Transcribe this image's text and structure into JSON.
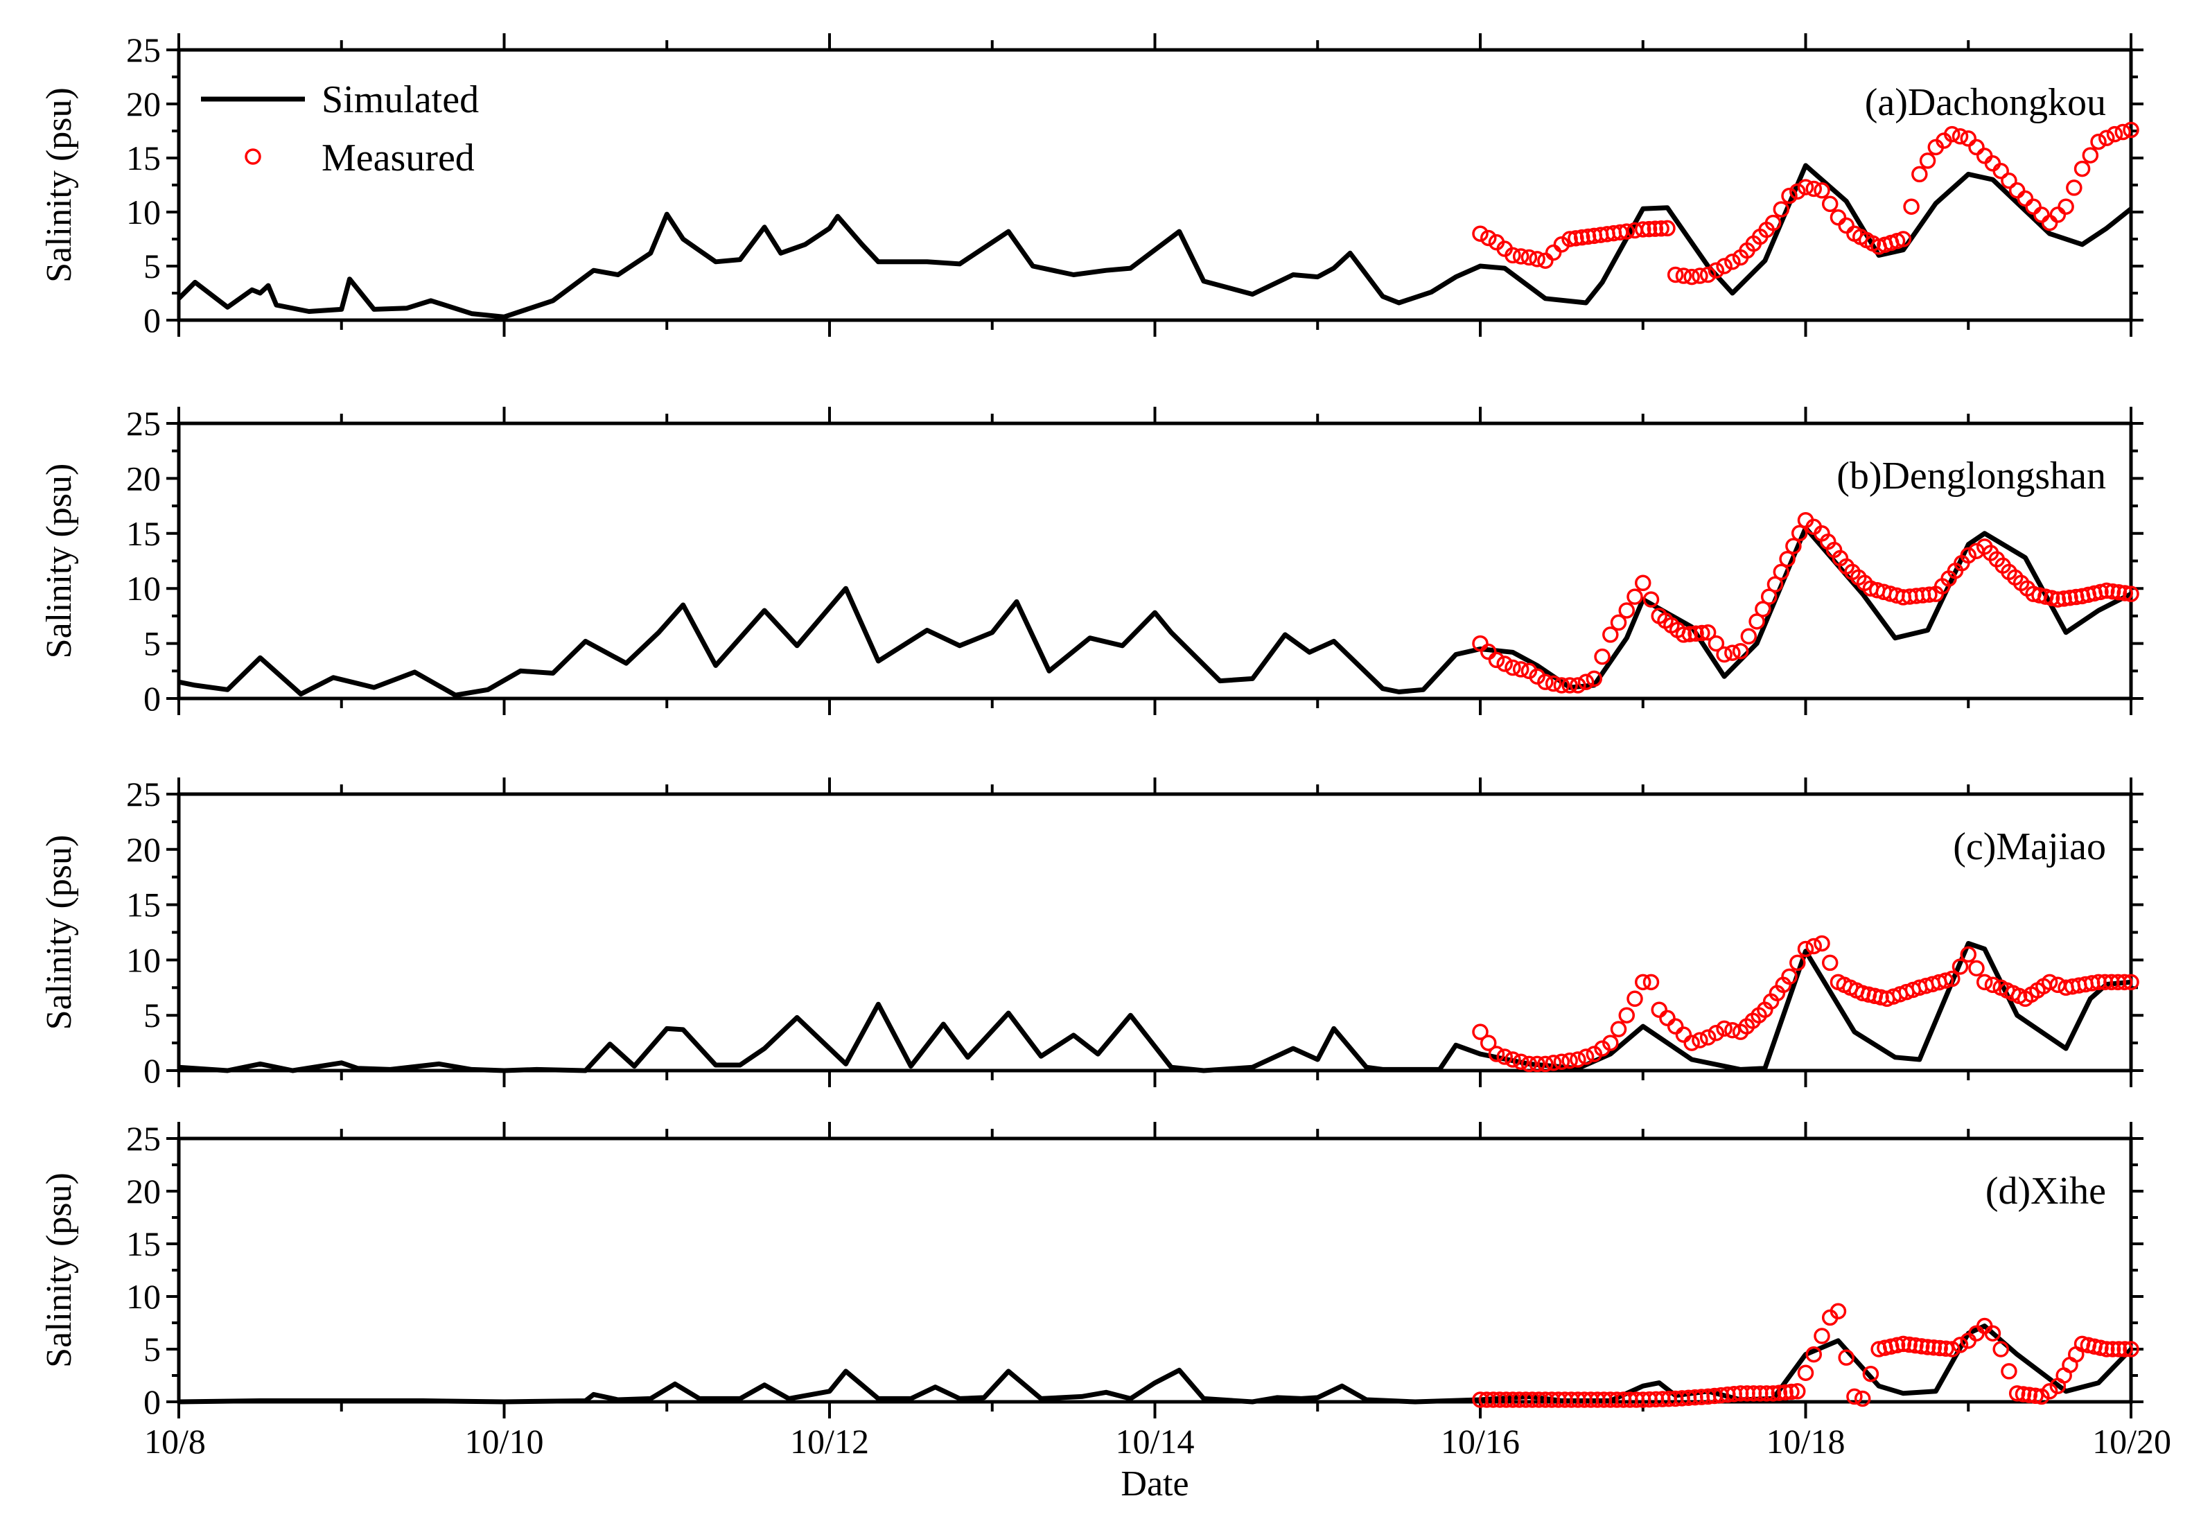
{
  "figure": {
    "xlabel": "Date",
    "legend": {
      "simulated": "Simulated",
      "measured": "Measured",
      "placement": "top-left"
    },
    "colors": {
      "simulated": "#000000",
      "measured": "#ff0000"
    }
  },
  "chart_data": [
    {
      "type": "line",
      "title": "(a)Dachongkou",
      "ylabel": "Salinity (psu)",
      "xlabel": "",
      "xlim": [
        8,
        20
      ],
      "ylim": [
        0,
        25
      ],
      "yticks": [
        0,
        5,
        10,
        15,
        20,
        25
      ],
      "xticks": [
        8,
        10,
        12,
        14,
        16,
        18,
        20
      ],
      "xtick_labels": [
        "10/8",
        "10/10",
        "10/12",
        "10/14",
        "10/16",
        "10/18",
        "10/20"
      ],
      "series": [
        {
          "name": "Simulated",
          "x": [
            8.0,
            8.1,
            8.3,
            8.45,
            8.5,
            8.55,
            8.6,
            8.8,
            9.0,
            9.05,
            9.2,
            9.4,
            9.55,
            9.8,
            10.0,
            10.3,
            10.55,
            10.7,
            10.9,
            11.0,
            11.1,
            11.3,
            11.45,
            11.6,
            11.7,
            11.85,
            12.0,
            12.05,
            12.2,
            12.3,
            12.6,
            12.8,
            13.0,
            13.1,
            13.25,
            13.5,
            13.7,
            13.85,
            14.0,
            14.15,
            14.3,
            14.6,
            14.85,
            15.0,
            15.1,
            15.2,
            15.4,
            15.5,
            15.7,
            15.85,
            16.0,
            16.15,
            16.4,
            16.65,
            16.75,
            17.0,
            17.15,
            17.4,
            17.55,
            17.75,
            18.0,
            18.25,
            18.45,
            18.6,
            18.8,
            19.0,
            19.15,
            19.5,
            19.7,
            19.85,
            20.0
          ],
          "values": [
            2.0,
            3.5,
            1.2,
            2.8,
            2.5,
            3.2,
            1.4,
            0.8,
            1.0,
            3.8,
            1.0,
            1.1,
            1.8,
            0.6,
            0.3,
            1.8,
            4.6,
            4.2,
            6.2,
            9.8,
            7.5,
            5.4,
            5.6,
            8.6,
            6.2,
            7.0,
            8.5,
            9.6,
            7.0,
            5.4,
            5.4,
            5.2,
            7.2,
            8.2,
            5.0,
            4.2,
            4.6,
            4.8,
            6.5,
            8.2,
            3.6,
            2.4,
            4.2,
            4.0,
            4.8,
            6.2,
            2.2,
            1.6,
            2.6,
            4.0,
            5.0,
            4.8,
            2.0,
            1.6,
            3.5,
            10.3,
            10.4,
            5.0,
            2.5,
            5.5,
            14.3,
            11.0,
            6.0,
            6.5,
            10.8,
            13.5,
            13.0,
            8.0,
            7.0,
            8.5,
            10.3
          ]
        },
        {
          "name": "Measured",
          "x": [
            16.0,
            16.1,
            16.2,
            16.3,
            16.4,
            16.5,
            16.55,
            16.7,
            16.9,
            17.0,
            17.15,
            17.2,
            17.3,
            17.4,
            17.5,
            17.6,
            17.8,
            17.9,
            18.0,
            18.1,
            18.2,
            18.3,
            18.45,
            18.6,
            18.7,
            18.8,
            18.9,
            19.0,
            19.1,
            19.2,
            19.3,
            19.4,
            19.5,
            19.6,
            19.7,
            19.8,
            19.9,
            20.0
          ],
          "values": [
            8.0,
            7.2,
            6.0,
            5.8,
            5.5,
            7.0,
            7.5,
            7.8,
            8.2,
            8.4,
            8.5,
            4.2,
            4.0,
            4.2,
            5.0,
            5.8,
            9.0,
            11.5,
            12.3,
            12.0,
            9.5,
            8.0,
            6.8,
            7.5,
            13.5,
            16.0,
            17.2,
            16.8,
            15.2,
            13.8,
            12.0,
            10.5,
            9.0,
            10.5,
            14.0,
            16.5,
            17.2,
            17.6
          ]
        }
      ]
    },
    {
      "type": "line",
      "title": "(b)Denglongshan",
      "ylabel": "Salinity (psu)",
      "xlabel": "",
      "xlim": [
        8,
        20
      ],
      "ylim": [
        0,
        25
      ],
      "yticks": [
        0,
        5,
        10,
        15,
        20,
        25
      ],
      "xticks": [
        8,
        10,
        12,
        14,
        16,
        18,
        20
      ],
      "xtick_labels": [
        "10/8",
        "10/10",
        "10/12",
        "10/14",
        "10/16",
        "10/18",
        "10/20"
      ],
      "series": [
        {
          "name": "Simulated",
          "x": [
            8.0,
            8.1,
            8.3,
            8.5,
            8.75,
            8.95,
            9.2,
            9.45,
            9.7,
            9.9,
            10.1,
            10.3,
            10.5,
            10.75,
            10.95,
            11.1,
            11.3,
            11.6,
            11.8,
            12.1,
            12.3,
            12.6,
            12.8,
            13.0,
            13.15,
            13.35,
            13.6,
            13.8,
            14.0,
            14.1,
            14.4,
            14.6,
            14.8,
            14.95,
            15.1,
            15.4,
            15.5,
            15.65,
            15.85,
            16.0,
            16.2,
            16.35,
            16.55,
            16.7,
            16.9,
            17.0,
            17.3,
            17.5,
            17.7,
            18.0,
            18.35,
            18.55,
            18.75,
            19.0,
            19.1,
            19.35,
            19.6,
            19.8,
            20.0
          ],
          "values": [
            1.5,
            1.2,
            0.8,
            3.7,
            0.4,
            1.9,
            1.0,
            2.4,
            0.3,
            0.8,
            2.5,
            2.3,
            5.2,
            3.2,
            6.0,
            8.5,
            3.0,
            8.0,
            4.8,
            10.0,
            3.4,
            6.2,
            4.8,
            6.0,
            8.8,
            2.5,
            5.5,
            4.8,
            7.8,
            6.0,
            1.6,
            1.8,
            5.8,
            4.2,
            5.2,
            0.9,
            0.6,
            0.8,
            4.0,
            4.5,
            4.2,
            3.0,
            1.0,
            1.2,
            5.5,
            9.0,
            6.5,
            2.0,
            5.0,
            15.5,
            9.5,
            5.5,
            6.2,
            14.0,
            15.0,
            12.8,
            6.0,
            8.0,
            9.5
          ]
        },
        {
          "name": "Measured",
          "x": [
            16.0,
            16.1,
            16.2,
            16.3,
            16.4,
            16.5,
            16.6,
            16.7,
            16.8,
            16.9,
            17.0,
            17.1,
            17.25,
            17.4,
            17.5,
            17.6,
            17.7,
            17.85,
            18.0,
            18.1,
            18.25,
            18.4,
            18.6,
            18.8,
            19.0,
            19.1,
            19.25,
            19.4,
            19.55,
            19.7,
            19.85,
            20.0
          ],
          "values": [
            5.0,
            3.5,
            2.8,
            2.5,
            1.5,
            1.2,
            1.2,
            1.8,
            5.8,
            8.0,
            10.5,
            7.5,
            5.8,
            6.0,
            4.0,
            4.3,
            7.0,
            11.5,
            16.2,
            15.0,
            12.0,
            10.0,
            9.2,
            9.5,
            13.0,
            13.8,
            11.5,
            9.5,
            9.0,
            9.3,
            9.8,
            9.5
          ]
        }
      ]
    },
    {
      "type": "line",
      "title": "(c)Majiao",
      "ylabel": "Salinity (psu)",
      "xlabel": "",
      "xlim": [
        8,
        20
      ],
      "ylim": [
        0,
        25
      ],
      "yticks": [
        0,
        5,
        10,
        15,
        20,
        25
      ],
      "xticks": [
        8,
        10,
        12,
        14,
        16,
        18,
        20
      ],
      "xtick_labels": [
        "10/8",
        "10/10",
        "10/12",
        "10/14",
        "10/16",
        "10/18",
        "10/20"
      ],
      "series": [
        {
          "name": "Simulated",
          "x": [
            8.0,
            8.3,
            8.5,
            8.7,
            9.0,
            9.1,
            9.3,
            9.6,
            9.8,
            10.0,
            10.2,
            10.5,
            10.65,
            10.8,
            11.0,
            11.1,
            11.3,
            11.45,
            11.6,
            11.8,
            12.1,
            12.3,
            12.5,
            12.7,
            12.85,
            13.1,
            13.3,
            13.5,
            13.65,
            13.85,
            14.1,
            14.3,
            14.6,
            14.85,
            15.0,
            15.1,
            15.3,
            15.4,
            15.75,
            15.85,
            16.0,
            16.3,
            16.6,
            16.8,
            17.0,
            17.3,
            17.6,
            17.75,
            18.0,
            18.3,
            18.55,
            18.7,
            19.0,
            19.1,
            19.3,
            19.6,
            19.75,
            19.85,
            20.0
          ],
          "values": [
            0.3,
            0.0,
            0.6,
            0.0,
            0.7,
            0.2,
            0.1,
            0.6,
            0.1,
            0.0,
            0.1,
            0.0,
            2.4,
            0.4,
            3.8,
            3.7,
            0.5,
            0.5,
            2.0,
            4.8,
            0.6,
            6.0,
            0.4,
            4.2,
            1.2,
            5.2,
            1.3,
            3.2,
            1.5,
            5.0,
            0.3,
            0.0,
            0.3,
            2.0,
            1.0,
            3.8,
            0.3,
            0.1,
            0.1,
            2.3,
            1.5,
            0.6,
            0.2,
            1.5,
            4.0,
            1.0,
            0.1,
            0.2,
            10.8,
            3.5,
            1.2,
            1.0,
            11.5,
            11.0,
            5.0,
            2.0,
            6.5,
            7.8,
            8.0
          ]
        },
        {
          "name": "Measured",
          "x": [
            16.0,
            16.1,
            16.2,
            16.3,
            16.4,
            16.5,
            16.6,
            16.7,
            16.8,
            16.9,
            17.0,
            17.05,
            17.1,
            17.2,
            17.3,
            17.4,
            17.5,
            17.6,
            17.75,
            17.9,
            18.0,
            18.1,
            18.2,
            18.35,
            18.5,
            18.7,
            18.9,
            19.0,
            19.1,
            19.2,
            19.35,
            19.5,
            19.6,
            19.8,
            20.0
          ],
          "values": [
            3.5,
            1.5,
            1.0,
            0.6,
            0.6,
            0.8,
            1.0,
            1.5,
            2.5,
            5.0,
            8.0,
            8.0,
            5.5,
            4.0,
            2.5,
            3.0,
            3.8,
            3.5,
            5.5,
            8.5,
            11.0,
            11.5,
            8.0,
            7.0,
            6.5,
            7.5,
            8.3,
            10.5,
            8.0,
            7.5,
            6.5,
            8.0,
            7.5,
            8.0,
            8.0
          ]
        }
      ]
    },
    {
      "type": "line",
      "title": "(d)Xihe",
      "ylabel": "Salinity (psu)",
      "xlabel": "Date",
      "xlim": [
        8,
        20
      ],
      "ylim": [
        0,
        25
      ],
      "yticks": [
        0,
        5,
        10,
        15,
        20,
        25
      ],
      "xticks": [
        8,
        10,
        12,
        14,
        16,
        18,
        20
      ],
      "xtick_labels": [
        "10/8",
        "10/10",
        "10/12",
        "10/14",
        "10/16",
        "10/18",
        "10/20"
      ],
      "series": [
        {
          "name": "Simulated",
          "x": [
            8.0,
            8.5,
            9.0,
            9.5,
            10.0,
            10.5,
            10.55,
            10.7,
            10.9,
            11.05,
            11.2,
            11.45,
            11.6,
            11.75,
            12.0,
            12.1,
            12.3,
            12.5,
            12.65,
            12.8,
            12.95,
            13.1,
            13.3,
            13.55,
            13.7,
            13.85,
            14.0,
            14.15,
            14.3,
            14.6,
            14.75,
            14.9,
            15.0,
            15.15,
            15.3,
            15.6,
            16.0,
            16.3,
            16.5,
            16.8,
            17.0,
            17.1,
            17.2,
            17.4,
            17.6,
            17.8,
            18.0,
            18.2,
            18.45,
            18.6,
            18.8,
            19.0,
            19.1,
            19.3,
            19.6,
            19.8,
            20.0
          ],
          "values": [
            0.0,
            0.1,
            0.1,
            0.1,
            0.0,
            0.1,
            0.7,
            0.2,
            0.3,
            1.7,
            0.3,
            0.3,
            1.6,
            0.3,
            1.0,
            2.9,
            0.3,
            0.3,
            1.4,
            0.3,
            0.4,
            2.9,
            0.3,
            0.5,
            0.9,
            0.3,
            1.8,
            3.0,
            0.3,
            0.0,
            0.4,
            0.3,
            0.4,
            1.5,
            0.2,
            0.0,
            0.2,
            0.5,
            0.1,
            0.1,
            1.5,
            1.8,
            0.6,
            1.0,
            0.2,
            0.3,
            4.5,
            5.8,
            1.5,
            0.8,
            1.0,
            6.5,
            7.2,
            4.5,
            1.0,
            1.8,
            5.0
          ]
        },
        {
          "name": "Measured",
          "x": [
            16.0,
            16.2,
            16.4,
            16.6,
            16.8,
            17.0,
            17.2,
            17.4,
            17.6,
            17.8,
            17.95,
            18.05,
            18.15,
            18.2,
            18.25,
            18.3,
            18.35,
            18.45,
            18.6,
            18.75,
            18.9,
            19.0,
            19.1,
            19.15,
            19.2,
            19.3,
            19.45,
            19.55,
            19.7,
            19.85,
            20.0
          ],
          "values": [
            0.2,
            0.2,
            0.2,
            0.2,
            0.2,
            0.2,
            0.3,
            0.5,
            0.8,
            0.8,
            1.0,
            4.5,
            8.0,
            8.6,
            4.2,
            0.5,
            0.3,
            5.0,
            5.5,
            5.2,
            5.0,
            5.8,
            7.2,
            6.5,
            5.0,
            0.8,
            0.5,
            1.5,
            5.5,
            5.0,
            5.0
          ]
        }
      ]
    }
  ]
}
